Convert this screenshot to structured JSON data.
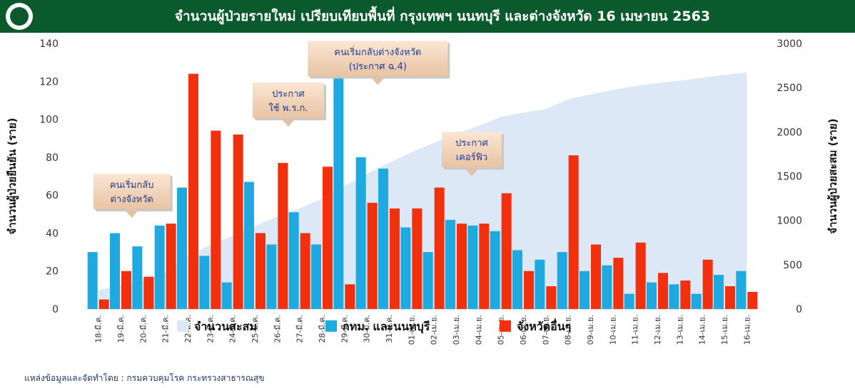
{
  "header": {
    "title": "จำนวนผู้ป่วยรายใหม่ เปรียบเทียบพื้นที่ กรุงเทพฯ นนทบุรี และต่างจังหวัด 16 เมษายน 2563"
  },
  "footer": {
    "source": "แหล่งข้อมูลและจัดทำโดย : กรมควบคุมโรค กระทรวงสาธารณสุข"
  },
  "chart_data": {
    "type": "bar",
    "categories": [
      "18-มี.ค.",
      "19-มี.ค.",
      "20-มี.ค.",
      "21-มี.ค.",
      "22-มี.ค.",
      "23-มี.ค.",
      "24-มี.ค.",
      "25-มี.ค.",
      "26-มี.ค.",
      "27-มี.ค.",
      "28-มี.ค.",
      "29-มี.ค.",
      "30-มี.ค.",
      "31-มี.ค.",
      "01-เม.ย.",
      "02-เม.ย.",
      "03-เม.ย.",
      "04-เม.ย.",
      "05-เม.ย.",
      "06-เม.ย.",
      "07-เม.ย.",
      "08-เม.ย.",
      "09-เม.ย.",
      "10-เม.ย.",
      "11-เม.ย.",
      "12-เม.ย.",
      "13-เม.ย.",
      "14-เม.ย.",
      "15-เม.ย.",
      "16-เม.ย."
    ],
    "series": [
      {
        "name": "จำนวนสะสม",
        "type": "area",
        "axis": "right",
        "color": "#dce8f5",
        "values": [
          212,
          272,
          322,
          411,
          599,
          721,
          827,
          934,
          1045,
          1136,
          1245,
          1388,
          1524,
          1651,
          1771,
          1875,
          1978,
          2067,
          2169,
          2220,
          2258,
          2369,
          2423,
          2473,
          2518,
          2551,
          2579,
          2613,
          2643,
          2672
        ]
      },
      {
        "name": "กทม. และนนทบุรี",
        "type": "bar",
        "axis": "left",
        "color": "#1fa9e1",
        "values": [
          30,
          40,
          33,
          44,
          64,
          28,
          14,
          67,
          34,
          51,
          34,
          126,
          80,
          74,
          43,
          30,
          47,
          44,
          41,
          31,
          26,
          30,
          20,
          23,
          8,
          14,
          13,
          8,
          18,
          20
        ]
      },
      {
        "name": "จังหวัดอื่นๆ",
        "type": "bar",
        "axis": "left",
        "color": "#f2300e",
        "values": [
          5,
          20,
          17,
          45,
          124,
          94,
          92,
          40,
          77,
          40,
          75,
          13,
          56,
          53,
          53,
          64,
          45,
          45,
          61,
          20,
          12,
          81,
          34,
          27,
          35,
          19,
          15,
          26,
          12,
          9
        ]
      }
    ],
    "ylabel": "จำนวนผู้ป่วยยืนยัน (ราย)",
    "ylabel_right": "จำนวนผู้ป่วยสะสม (ราย)",
    "ylim": [
      0,
      140
    ],
    "ylim_right": [
      0,
      3000
    ],
    "yticks": [
      0,
      20,
      40,
      60,
      80,
      100,
      120,
      140
    ],
    "yticks_right": [
      0,
      500,
      1000,
      1500,
      2000,
      2500,
      3000
    ],
    "legend_position": "bottom",
    "annotations": [
      {
        "lines": [
          "คนเริ่มกลับ",
          "ต่างจังหวัด"
        ],
        "anchor_index": 1.5,
        "value": 62
      },
      {
        "lines": [
          "ประกาศ",
          "ใช้ พ.ร.ก."
        ],
        "anchor_index": 8.5,
        "value": 110
      },
      {
        "lines": [
          "คนเริ่มกลับต่างจังหวัด",
          "(ประกาศ ฉ.4)"
        ],
        "anchor_index": 12.5,
        "value": 132
      },
      {
        "lines": [
          "ประกาศ",
          "เคอร์ฟิว"
        ],
        "anchor_index": 16.7,
        "value": 84
      }
    ]
  }
}
